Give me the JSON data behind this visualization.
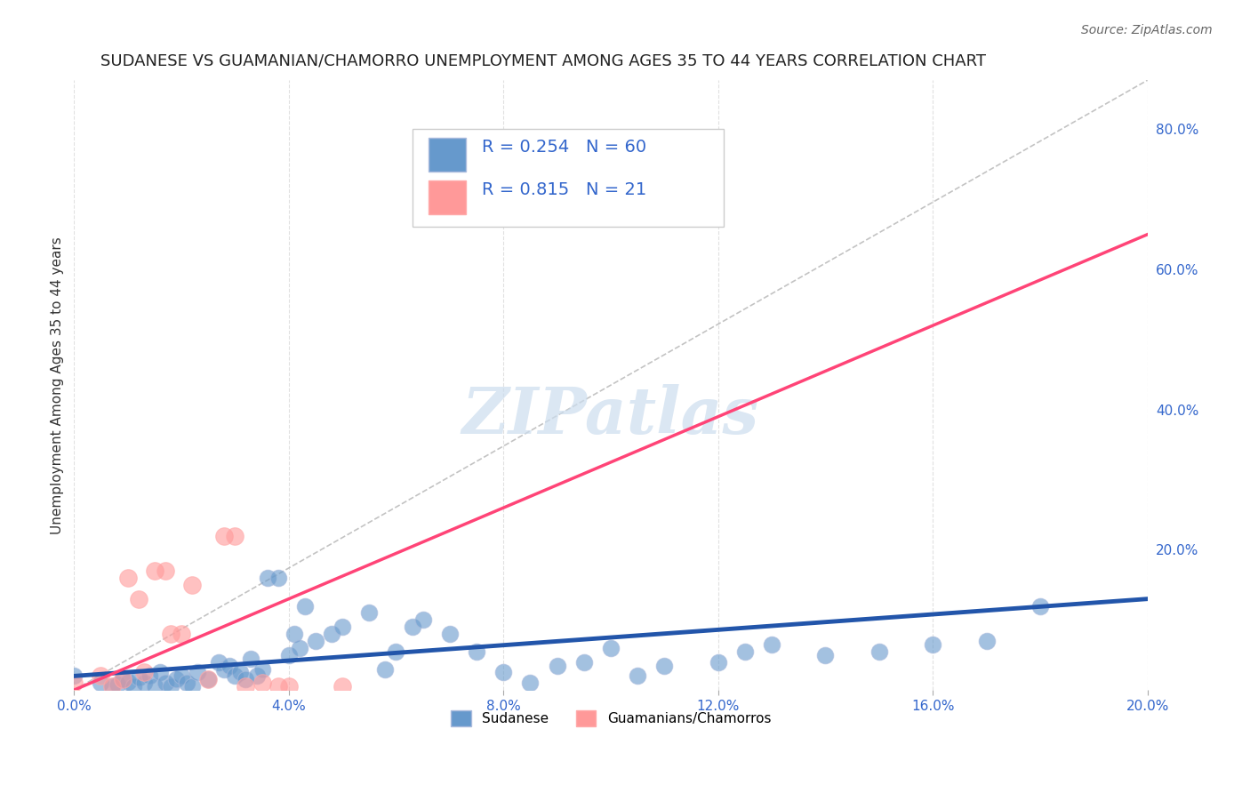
{
  "title": "SUDANESE VS GUAMANIAN/CHAMORRO UNEMPLOYMENT AMONG AGES 35 TO 44 YEARS CORRELATION CHART",
  "source": "Source: ZipAtlas.com",
  "xlabel": "",
  "ylabel": "Unemployment Among Ages 35 to 44 years",
  "xlim": [
    0.0,
    0.2
  ],
  "ylim": [
    0.0,
    0.87
  ],
  "xticks": [
    0.0,
    0.04,
    0.08,
    0.12,
    0.16,
    0.2
  ],
  "yticks_right": [
    0.2,
    0.4,
    0.6,
    0.8
  ],
  "sudanese_R": 0.254,
  "sudanese_N": 60,
  "guamanian_R": 0.815,
  "guamanian_N": 21,
  "blue_color": "#6699CC",
  "pink_color": "#FF9999",
  "blue_line_color": "#2255AA",
  "pink_line_color": "#FF4477",
  "diag_line_color": "#AAAAAA",
  "watermark_color": "#CCDDEE",
  "background_color": "#FFFFFF",
  "grid_color": "#DDDDDD",
  "sudanese_x": [
    0.0,
    0.005,
    0.007,
    0.008,
    0.009,
    0.01,
    0.011,
    0.012,
    0.013,
    0.014,
    0.015,
    0.016,
    0.017,
    0.018,
    0.019,
    0.02,
    0.021,
    0.022,
    0.023,
    0.025,
    0.027,
    0.028,
    0.029,
    0.03,
    0.031,
    0.032,
    0.033,
    0.034,
    0.035,
    0.036,
    0.038,
    0.04,
    0.041,
    0.042,
    0.043,
    0.045,
    0.048,
    0.05,
    0.055,
    0.058,
    0.06,
    0.063,
    0.065,
    0.07,
    0.075,
    0.08,
    0.085,
    0.09,
    0.095,
    0.1,
    0.105,
    0.11,
    0.12,
    0.125,
    0.13,
    0.14,
    0.15,
    0.16,
    0.17,
    0.18
  ],
  "sudanese_y": [
    0.02,
    0.01,
    0.005,
    0.008,
    0.015,
    0.012,
    0.005,
    0.018,
    0.01,
    0.02,
    0.005,
    0.025,
    0.01,
    0.005,
    0.015,
    0.02,
    0.01,
    0.005,
    0.025,
    0.015,
    0.04,
    0.03,
    0.035,
    0.02,
    0.025,
    0.015,
    0.045,
    0.02,
    0.03,
    0.16,
    0.16,
    0.05,
    0.08,
    0.06,
    0.12,
    0.07,
    0.08,
    0.09,
    0.11,
    0.03,
    0.055,
    0.09,
    0.1,
    0.08,
    0.055,
    0.025,
    0.01,
    0.035,
    0.04,
    0.06,
    0.02,
    0.035,
    0.04,
    0.055,
    0.065,
    0.05,
    0.055,
    0.065,
    0.07,
    0.12
  ],
  "guamanian_x": [
    0.0,
    0.005,
    0.007,
    0.009,
    0.01,
    0.012,
    0.013,
    0.015,
    0.017,
    0.018,
    0.02,
    0.022,
    0.025,
    0.028,
    0.03,
    0.032,
    0.035,
    0.038,
    0.04,
    0.05,
    0.065
  ],
  "guamanian_y": [
    0.01,
    0.02,
    0.005,
    0.015,
    0.16,
    0.13,
    0.025,
    0.17,
    0.17,
    0.08,
    0.08,
    0.15,
    0.015,
    0.22,
    0.22,
    0.005,
    0.01,
    0.005,
    0.005,
    0.005,
    0.68
  ]
}
